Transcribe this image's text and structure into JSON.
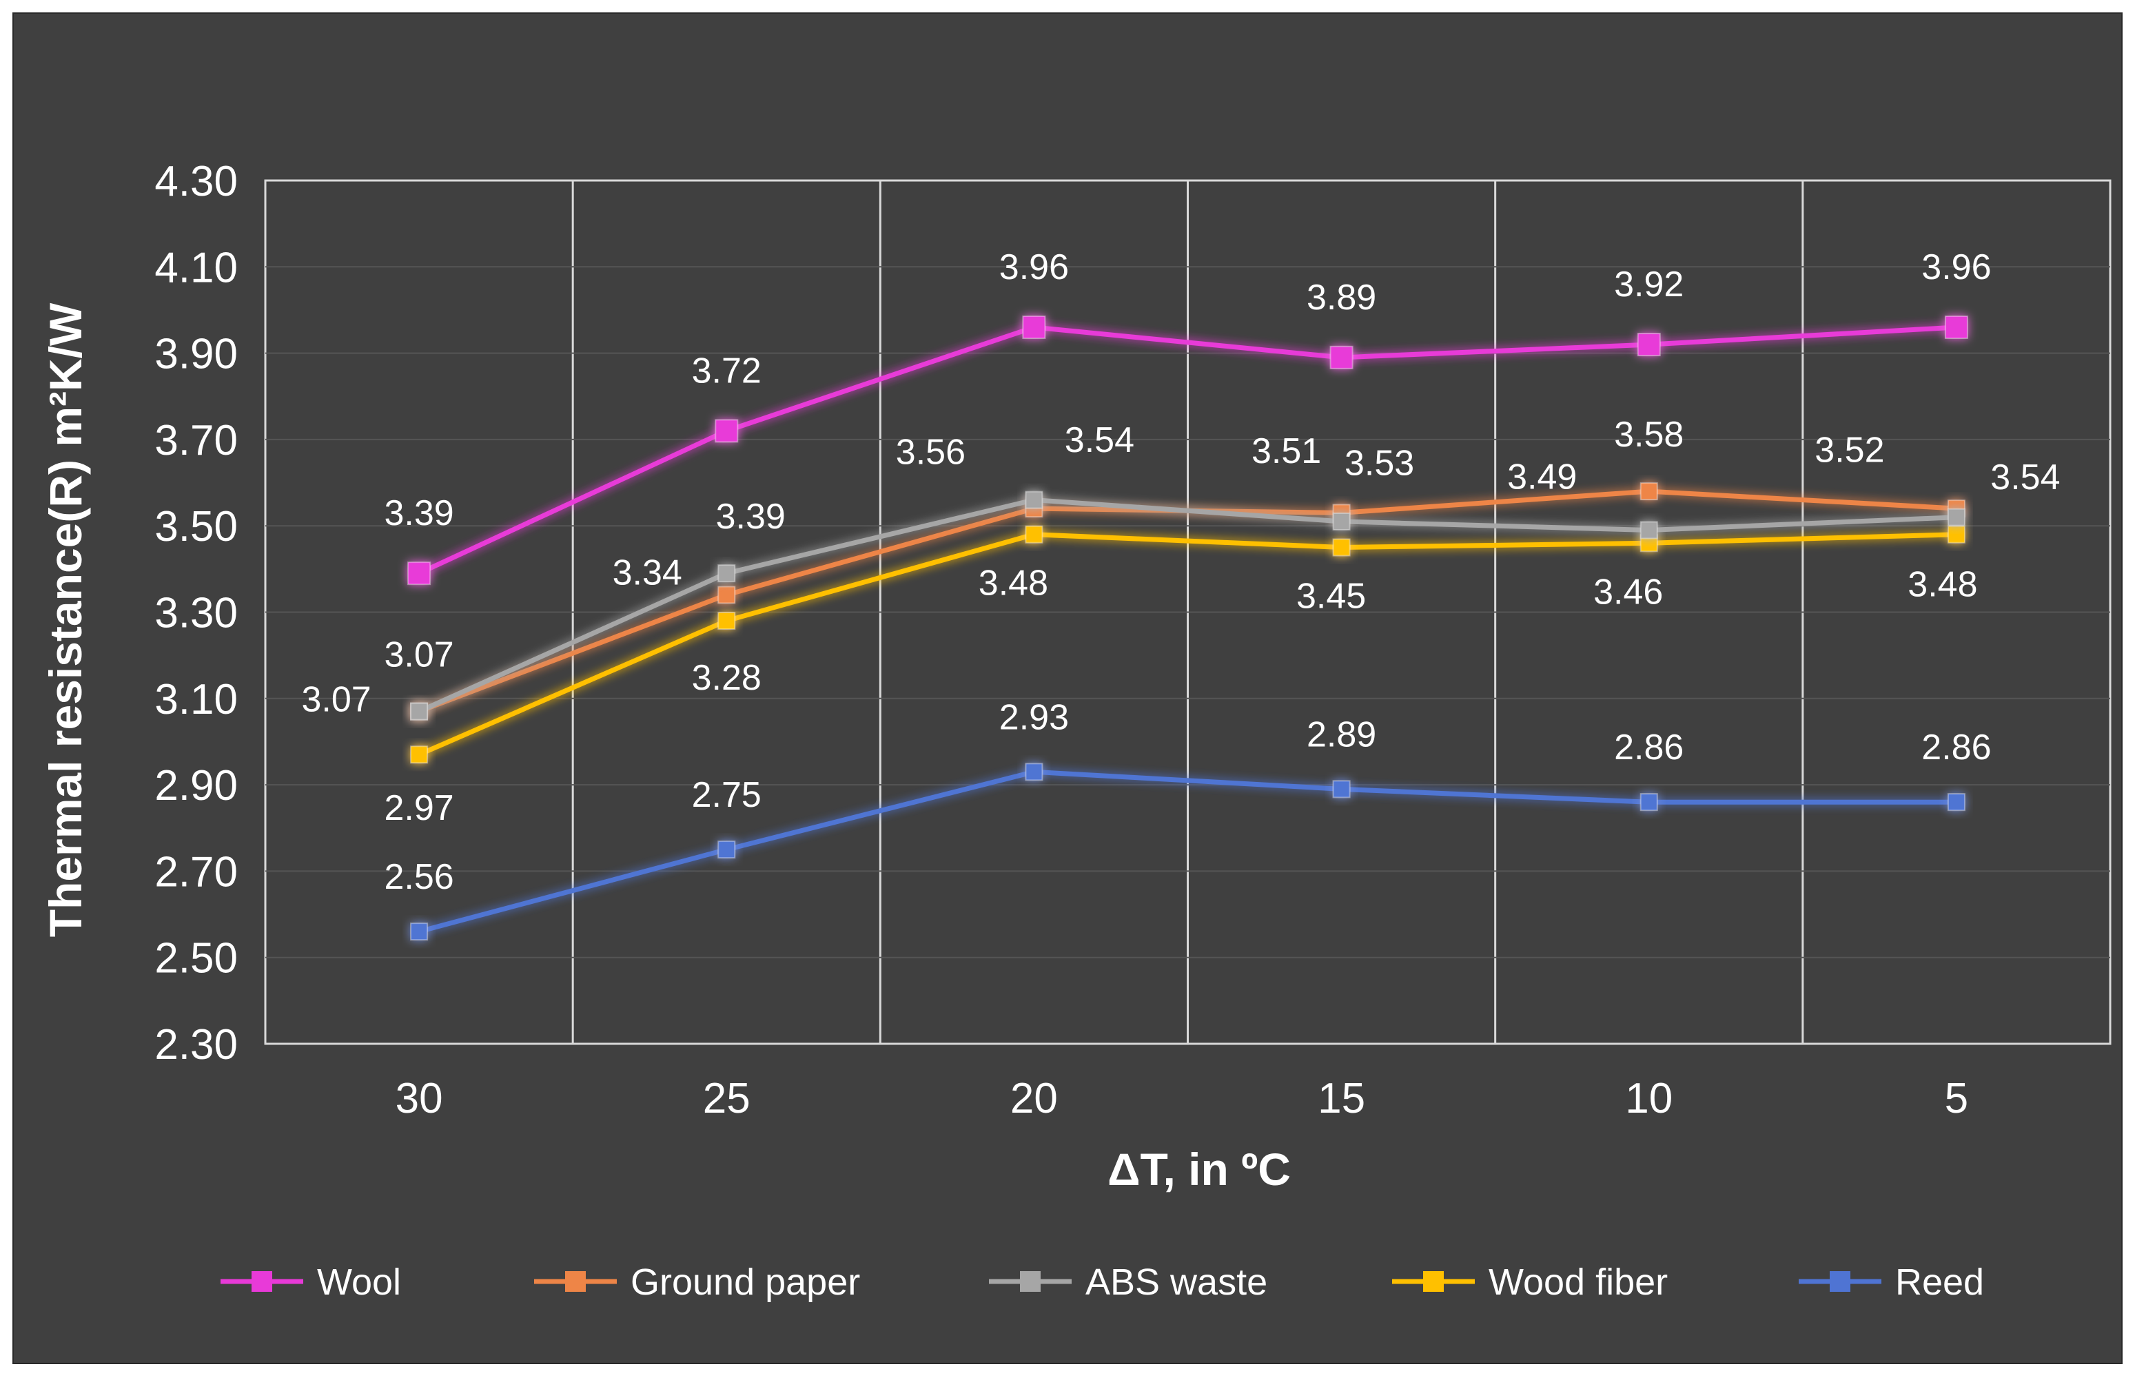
{
  "colors": {
    "background": "#404040",
    "grid": "#d9d9d9",
    "text": "#ffffff"
  },
  "chart_data": {
    "type": "line",
    "title": "",
    "xlabel": "ΔT, in ºC",
    "ylabel": "Thermal resistance(R) m²K/W",
    "categories": [
      "30",
      "25",
      "20",
      "15",
      "10",
      "5"
    ],
    "ylim": [
      2.3,
      4.3
    ],
    "yticks": [
      "2.30",
      "2.50",
      "2.70",
      "2.90",
      "3.10",
      "3.30",
      "3.50",
      "3.70",
      "3.90",
      "4.10",
      "4.30"
    ],
    "grid": "vertical",
    "legend_position": "bottom",
    "series": [
      {
        "name": "Wool",
        "color": "#e83ad8",
        "marker": "square-large",
        "values": [
          3.39,
          3.72,
          3.96,
          3.89,
          3.92,
          3.96
        ],
        "labels": [
          "3.39",
          "3.72",
          "3.96",
          "3.89",
          "3.92",
          "3.96"
        ]
      },
      {
        "name": "Ground paper",
        "color": "#ee8547",
        "marker": "square",
        "values": [
          3.07,
          3.34,
          3.54,
          3.53,
          3.58,
          3.54
        ],
        "labels": [
          "3.07",
          "3.34",
          "3.54",
          "3.53",
          "3.58",
          "3.54"
        ]
      },
      {
        "name": "ABS waste",
        "color": "#a6a6a6",
        "marker": "square",
        "values": [
          3.07,
          3.39,
          3.56,
          3.51,
          3.49,
          3.52
        ],
        "labels": [
          "3.07",
          "3.39",
          "3.56",
          "3.51",
          "3.49",
          "3.52"
        ]
      },
      {
        "name": "Wood fiber",
        "color": "#ffc000",
        "marker": "square",
        "values": [
          2.97,
          3.28,
          3.48,
          3.45,
          3.46,
          3.48
        ],
        "labels": [
          "2.97",
          "3.28",
          "3.48",
          "3.45",
          "3.46",
          "3.48"
        ]
      },
      {
        "name": "Reed",
        "color": "#4f74d3",
        "marker": "square",
        "values": [
          2.56,
          2.75,
          2.93,
          2.89,
          2.86,
          2.86
        ],
        "labels": [
          "2.56",
          "2.75",
          "2.93",
          "2.89",
          "2.86",
          "2.86"
        ]
      }
    ]
  }
}
